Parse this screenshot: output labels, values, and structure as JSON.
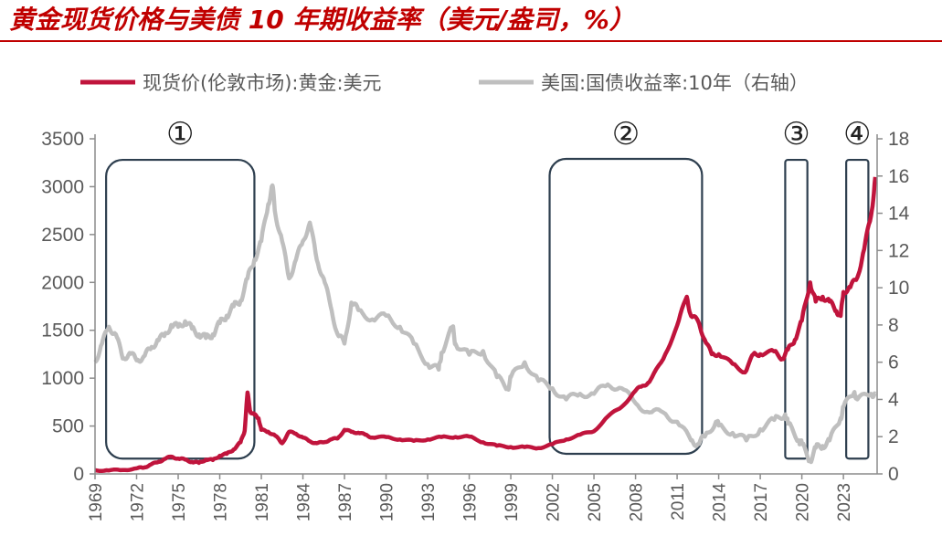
{
  "page": {
    "title": "黄金现货价格与美债 10 年期收益率（美元/盎司，%）"
  },
  "chart_data": {
    "type": "line",
    "title": "黄金现货价格与美债 10 年期收益率（美元/盎司，%）",
    "legend_position": "top",
    "grid": false,
    "x_ticks": [
      "1969",
      "1972",
      "1975",
      "1978",
      "1981",
      "1984",
      "1987",
      "1990",
      "1993",
      "1996",
      "1999",
      "2002",
      "2005",
      "2008",
      "2011",
      "2014",
      "2017",
      "2020",
      "2023"
    ],
    "xlim": [
      1969,
      2025.3
    ],
    "y_left": {
      "lim": [
        0,
        3500
      ],
      "ticks": [
        0,
        500,
        1000,
        1500,
        2000,
        2500,
        3000,
        3500
      ]
    },
    "y_right": {
      "lim": [
        0,
        18
      ],
      "ticks": [
        0,
        2,
        4,
        6,
        8,
        10,
        12,
        14,
        16,
        18
      ]
    },
    "series": [
      {
        "name": "现货价(伦敦市场):黄金:美元",
        "axis": "left",
        "color": "#c0143c",
        "x": [
          1969,
          1970,
          1971,
          1972,
          1972.5,
          1973,
          1973.5,
          1974,
          1974.5,
          1975,
          1975.5,
          1976,
          1976.5,
          1977,
          1977.5,
          1978,
          1978.5,
          1979,
          1979.5,
          1979.8,
          1980.0,
          1980.2,
          1980.5,
          1980.8,
          1981,
          1981.5,
          1982,
          1982.5,
          1983,
          1983.5,
          1984,
          1984.5,
          1985,
          1985.5,
          1986,
          1986.5,
          1987,
          1987.5,
          1988,
          1988.5,
          1989,
          1990,
          1991,
          1992,
          1993,
          1994,
          1995,
          1996,
          1997,
          1998,
          1999,
          2000,
          2001,
          2002,
          2003,
          2004,
          2005,
          2006,
          2007,
          2008,
          2008.5,
          2009,
          2010,
          2011,
          2011.7,
          2012,
          2012.5,
          2013,
          2013.5,
          2014,
          2015,
          2015.9,
          2016.5,
          2017,
          2018,
          2018.6,
          2019,
          2019.5,
          2020,
          2020.6,
          2021,
          2021.5,
          2022,
          2022.5,
          2022.8,
          2023,
          2023.5,
          2024,
          2024.5,
          2025,
          2025.3
        ],
        "values": [
          40,
          36,
          41,
          58,
          65,
          97,
          120,
          155,
          180,
          160,
          150,
          125,
          115,
          150,
          145,
          190,
          210,
          255,
          330,
          450,
          850,
          650,
          620,
          580,
          460,
          440,
          400,
          320,
          440,
          420,
          380,
          340,
          320,
          330,
          360,
          370,
          460,
          440,
          430,
          410,
          380,
          385,
          360,
          345,
          360,
          385,
          385,
          390,
          330,
          295,
          280,
          280,
          270,
          310,
          360,
          410,
          445,
          600,
          700,
          870,
          920,
          960,
          1200,
          1550,
          1850,
          1650,
          1600,
          1400,
          1250,
          1250,
          1150,
          1060,
          1250,
          1250,
          1280,
          1200,
          1300,
          1400,
          1600,
          2000,
          1800,
          1850,
          1800,
          1700,
          1650,
          1900,
          1950,
          2050,
          2350,
          2700,
          3100
        ]
      },
      {
        "name": "美国:国债收益率:10年（右轴）",
        "axis": "right",
        "color": "#bfbfbf",
        "x": [
          1969,
          1969.5,
          1970,
          1970.5,
          1971,
          1971.5,
          1972,
          1972.5,
          1973,
          1973.5,
          1974,
          1974.5,
          1975,
          1975.5,
          1976,
          1976.5,
          1977,
          1977.5,
          1978,
          1978.5,
          1979,
          1979.5,
          1980,
          1980.5,
          1981,
          1981.5,
          1981.8,
          1982,
          1982.5,
          1983,
          1983.5,
          1984,
          1984.5,
          1985,
          1985.5,
          1986,
          1986.5,
          1987,
          1987.5,
          1988,
          1989,
          1990,
          1991,
          1992,
          1993,
          1993.8,
          1994,
          1994.8,
          1995,
          1996,
          1997,
          1998,
          1998.8,
          1999,
          2000,
          2001,
          2002,
          2003,
          2004,
          2005,
          2006,
          2007,
          2008,
          2009,
          2010,
          2011,
          2012,
          2012.5,
          2013,
          2013.8,
          2014,
          2015,
          2016,
          2017,
          2018,
          2018.8,
          2019,
          2019.8,
          2020,
          2020.6,
          2021,
          2021.5,
          2022,
          2022.8,
          2023,
          2023.8,
          2024,
          2025,
          2025.3
        ],
        "values": [
          6.0,
          7.0,
          7.9,
          7.5,
          6.2,
          6.5,
          6.1,
          6.3,
          6.7,
          7.2,
          7.4,
          8.0,
          7.9,
          8.2,
          7.8,
          7.5,
          7.3,
          7.5,
          8.1,
          8.5,
          9.0,
          9.3,
          10.5,
          11.5,
          12.5,
          14.5,
          15.5,
          14.0,
          12.5,
          10.5,
          11.5,
          12.5,
          13.5,
          11.5,
          10.5,
          9.0,
          7.5,
          7.0,
          9.2,
          8.8,
          8.3,
          8.5,
          7.9,
          7.0,
          5.9,
          5.6,
          6.5,
          7.9,
          7.0,
          6.4,
          6.6,
          5.2,
          4.6,
          5.2,
          6.0,
          5.0,
          4.6,
          4.0,
          4.3,
          4.3,
          4.8,
          4.6,
          3.8,
          3.3,
          3.3,
          2.8,
          1.8,
          1.6,
          2.0,
          2.8,
          2.6,
          2.2,
          1.8,
          2.4,
          2.9,
          3.2,
          2.7,
          1.8,
          1.6,
          0.7,
          1.4,
          1.5,
          1.8,
          3.0,
          3.6,
          4.4,
          4.0,
          4.3,
          4.3
        ]
      }
    ],
    "annotations": [
      {
        "label": "①",
        "x_range": [
          1969.8,
          1980.5
        ],
        "y_range_left": [
          160,
          3280
        ]
      },
      {
        "label": "②",
        "x_range": [
          2001.8,
          2012.8
        ],
        "y_range_left": [
          210,
          3290
        ]
      },
      {
        "label": "③",
        "x_range": [
          2018.8,
          2020.4
        ],
        "y_range_left": [
          160,
          3280
        ]
      },
      {
        "label": "④",
        "x_range": [
          2023.2,
          2024.8
        ],
        "y_range_left": [
          160,
          3280
        ]
      }
    ]
  }
}
